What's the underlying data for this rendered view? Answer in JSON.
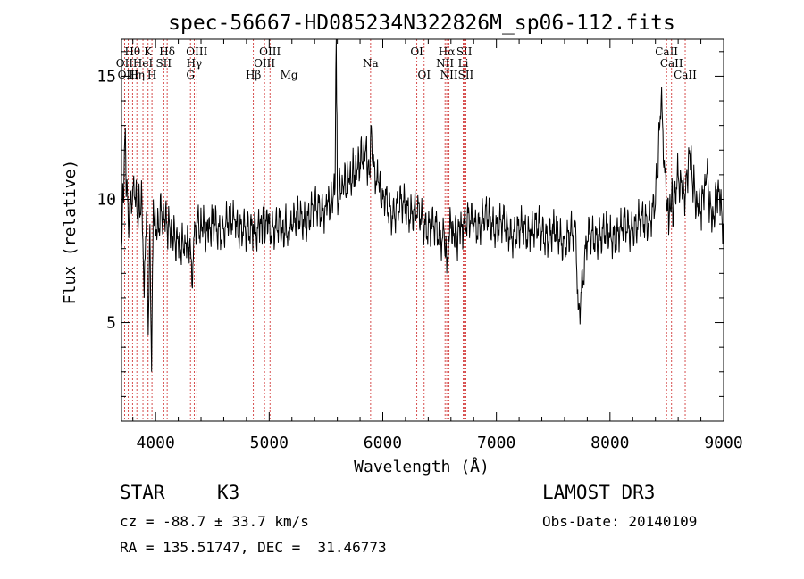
{
  "chart_data": {
    "type": "line",
    "title": "spec-56667-HD085234N322826M_sp06-112.fits",
    "xlabel": "Wavelength (Å)",
    "ylabel": "Flux (relative)",
    "xlim": [
      3700,
      9000
    ],
    "ylim": [
      1,
      16.5
    ],
    "xticks": [
      4000,
      5000,
      6000,
      7000,
      8000,
      9000
    ],
    "yticks": [
      5,
      10,
      15
    ],
    "grid": false,
    "series": [
      {
        "x": [
          3700,
          3730,
          3760,
          3800,
          3850,
          3880,
          3900,
          3920,
          3935,
          3950,
          3965,
          3980,
          4000,
          4050,
          4100,
          4150,
          4200,
          4250,
          4300,
          4320,
          4340,
          4380,
          4450,
          4500,
          4600,
          4700,
          4800,
          4860,
          4900,
          4950,
          5000,
          5100,
          5170,
          5200,
          5300,
          5400,
          5500,
          5550,
          5580,
          5590,
          5600,
          5650,
          5700,
          5750,
          5800,
          5850,
          5880,
          5895,
          5910,
          5950,
          6000,
          6100,
          6200,
          6300,
          6400,
          6500,
          6540,
          6563,
          6580,
          6600,
          6650,
          6700,
          6800,
          6900,
          7000,
          7100,
          7200,
          7300,
          7400,
          7500,
          7600,
          7700,
          7720,
          7800,
          7900,
          8000,
          8100,
          8200,
          8300,
          8400,
          8450,
          8498,
          8520,
          8542,
          8560,
          8600,
          8662,
          8700,
          8750,
          8800,
          8850,
          8900,
          8950,
          9000
        ],
        "y": [
          8.0,
          12.5,
          9.0,
          10.5,
          9.5,
          10.0,
          6.0,
          9.5,
          4.5,
          9.0,
          3.0,
          10.0,
          8.5,
          9.5,
          9.0,
          8.5,
          8.2,
          8.0,
          8.3,
          6.5,
          8.5,
          9.0,
          8.7,
          9.0,
          8.8,
          9.2,
          8.5,
          9.0,
          8.8,
          9.2,
          9.0,
          8.8,
          8.7,
          9.0,
          9.2,
          9.5,
          9.8,
          10.0,
          10.5,
          16.5,
          10.2,
          10.5,
          10.8,
          11.0,
          11.5,
          12.0,
          11.0,
          13.0,
          11.5,
          11.0,
          10.0,
          9.5,
          9.8,
          9.3,
          9.0,
          8.5,
          8.7,
          7.0,
          8.5,
          8.8,
          8.5,
          9.0,
          9.0,
          9.2,
          9.0,
          8.8,
          8.6,
          8.8,
          8.7,
          8.6,
          8.4,
          8.5,
          5.5,
          8.3,
          8.6,
          8.5,
          8.8,
          8.9,
          9.0,
          9.8,
          14.0,
          10.0,
          9.0,
          10.2,
          9.5,
          11.0,
          10.0,
          12.0,
          10.0,
          9.5,
          11.0,
          9.0,
          10.5,
          9.0
        ]
      }
    ],
    "lines": [
      {
        "label": "Hθ",
        "x": 3797,
        "row": 0
      },
      {
        "label": "K",
        "x": 3934,
        "row": 0
      },
      {
        "label": "Hδ",
        "x": 4102,
        "row": 0
      },
      {
        "label": "OIII",
        "x": 4363,
        "row": 0
      },
      {
        "label": "OIII",
        "x": 5007,
        "row": 0
      },
      {
        "label": "OI",
        "x": 6300,
        "row": 0
      },
      {
        "label": "Hα",
        "x": 6563,
        "row": 0
      },
      {
        "label": "SII",
        "x": 6717,
        "row": 0
      },
      {
        "label": "CaII",
        "x": 8498,
        "row": 0
      },
      {
        "label": "OII",
        "x": 3727,
        "row": 1
      },
      {
        "label": "HeI",
        "x": 3889,
        "row": 1
      },
      {
        "label": "SII",
        "x": 4072,
        "row": 1
      },
      {
        "label": "Hγ",
        "x": 4340,
        "row": 1
      },
      {
        "label": "OIII",
        "x": 4959,
        "row": 1
      },
      {
        "label": "Na",
        "x": 5893,
        "row": 1
      },
      {
        "label": "NII",
        "x": 6548,
        "row": 1
      },
      {
        "label": "Li",
        "x": 6708,
        "row": 1
      },
      {
        "label": "CaII",
        "x": 8542,
        "row": 1
      },
      {
        "label": "OIII",
        "x": 3760,
        "row": 2
      },
      {
        "label": "Hη",
        "x": 3835,
        "row": 2
      },
      {
        "label": "H",
        "x": 3968,
        "row": 2
      },
      {
        "label": "G",
        "x": 4307,
        "row": 2
      },
      {
        "label": "Hβ",
        "x": 4861,
        "row": 2
      },
      {
        "label": "Mg",
        "x": 5175,
        "row": 2
      },
      {
        "label": "OI",
        "x": 6364,
        "row": 2
      },
      {
        "label": "NII",
        "x": 6583,
        "row": 2
      },
      {
        "label": "SII",
        "x": 6731,
        "row": 2
      },
      {
        "label": "CaII",
        "x": 8662,
        "row": 2
      }
    ],
    "line_color": "#cc2222"
  },
  "info": {
    "class": "STAR",
    "subclass": "K3",
    "survey": "LAMOST DR3",
    "cz": "cz = -88.7 ± 33.7 km/s",
    "obs_date": "Obs-Date: 20140109",
    "coords": "RA = 135.51747, DEC =  31.46773"
  }
}
